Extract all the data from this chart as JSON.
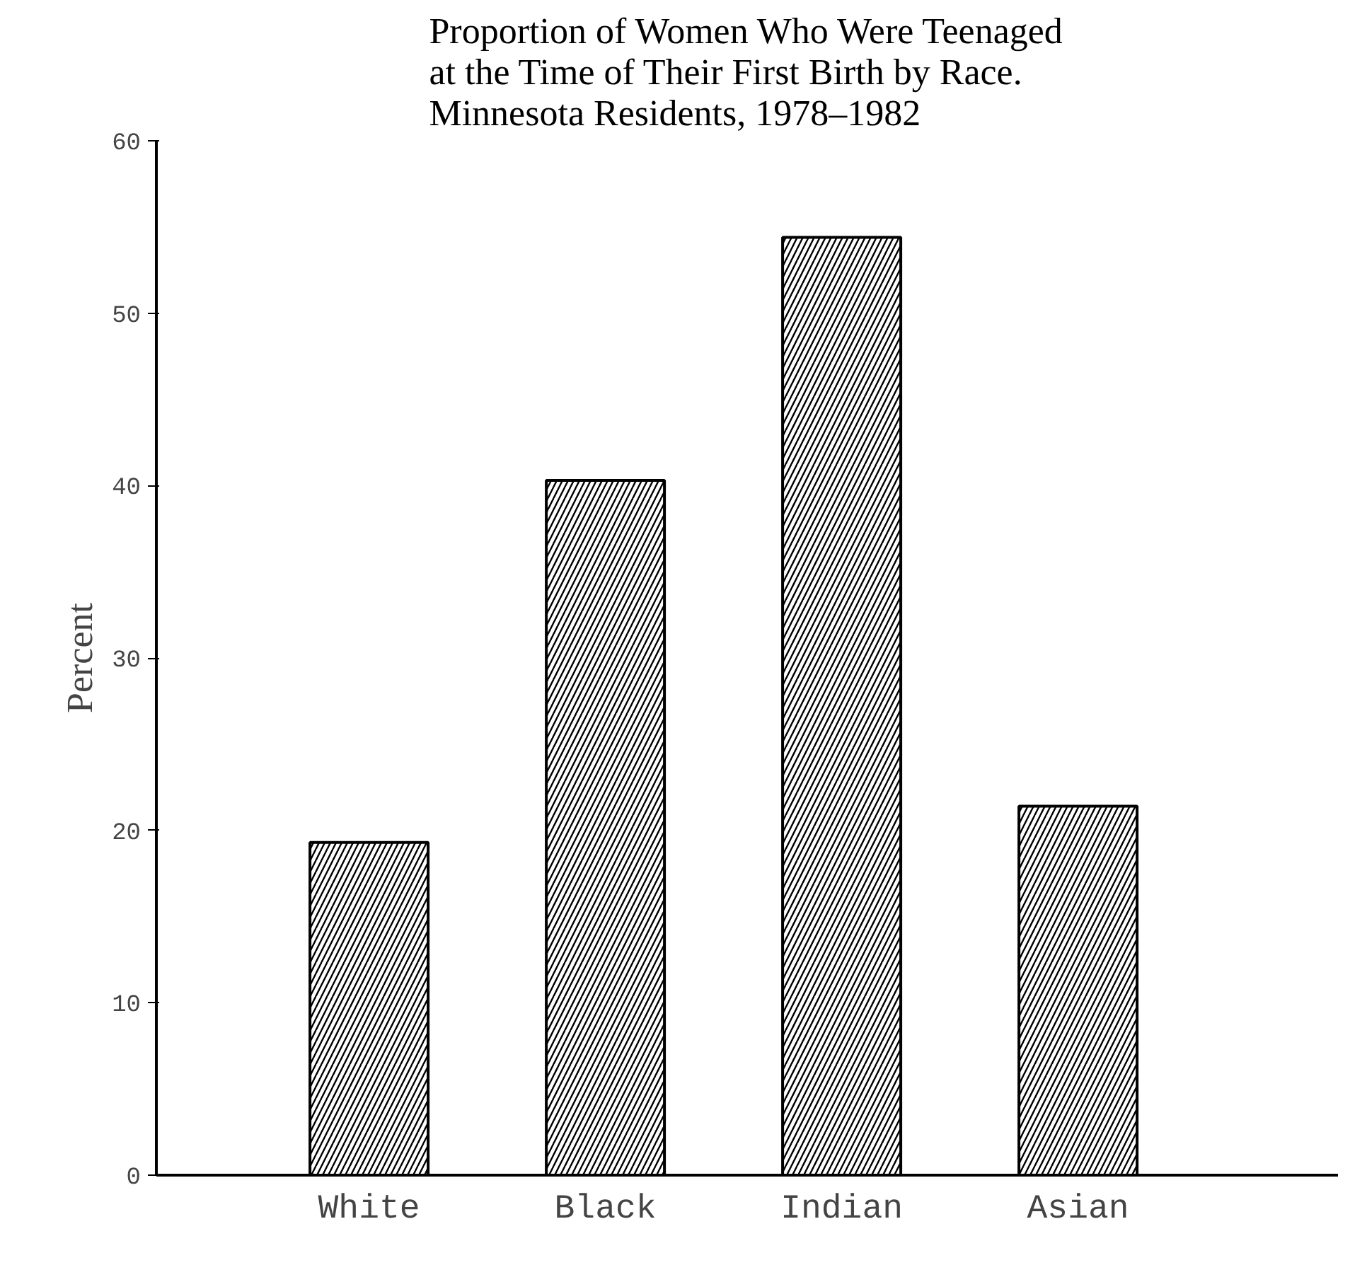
{
  "chart_data": {
    "type": "bar",
    "title": "Proportion of Women Who Were Teenaged\nat the Time of Their First Birth by Race.\nMinnesota Residents, 1978–1982",
    "ylabel": "Percent",
    "categories": [
      "White",
      "Black",
      "Indian",
      "Asian"
    ],
    "values": [
      19.3,
      40.3,
      54.4,
      21.4
    ],
    "color": "#ffffff",
    "ylim": [
      0,
      60
    ],
    "yticks": [
      0,
      10,
      20,
      30,
      40,
      50,
      60
    ],
    "grid": false
  }
}
